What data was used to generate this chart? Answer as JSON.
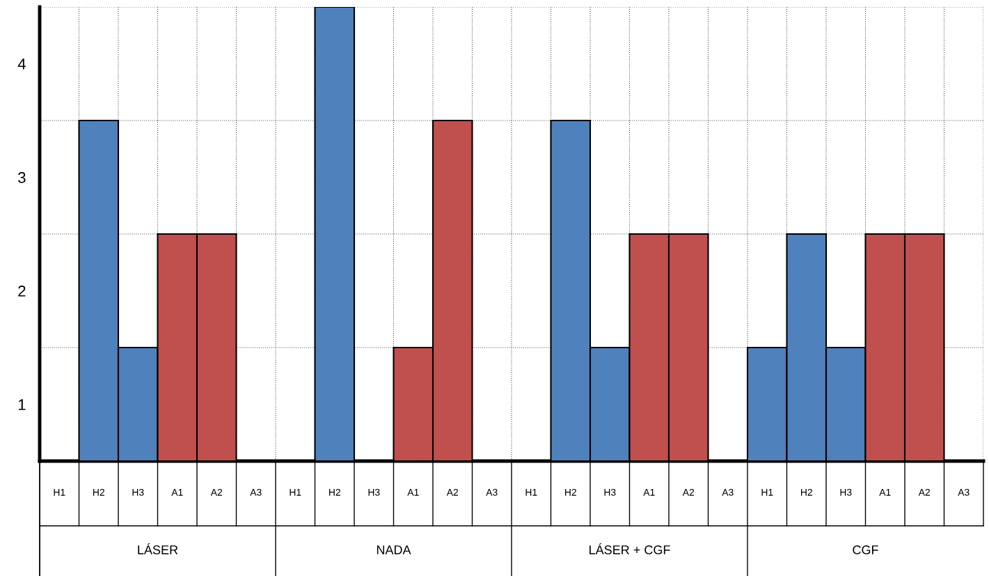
{
  "chart_data": {
    "type": "bar",
    "categories": [
      "H1",
      "H2",
      "H3",
      "A1",
      "A2",
      "A3",
      "H1",
      "H2",
      "H3",
      "A1",
      "A2",
      "A3",
      "H1",
      "H2",
      "H3",
      "A1",
      "A2",
      "A3",
      "H1",
      "H2",
      "H3",
      "A1",
      "A2",
      "A3"
    ],
    "values": [
      0,
      3,
      1,
      2,
      2,
      0,
      0,
      4,
      0,
      1,
      3,
      0,
      0,
      3,
      1,
      2,
      2,
      0,
      1,
      2,
      1,
      2,
      2,
      0
    ],
    "colors": [
      "#4f81bd",
      "#4f81bd",
      "#4f81bd",
      "#c0504d",
      "#c0504d",
      "#c0504d",
      "#4f81bd",
      "#4f81bd",
      "#4f81bd",
      "#c0504d",
      "#c0504d",
      "#c0504d",
      "#4f81bd",
      "#4f81bd",
      "#4f81bd",
      "#c0504d",
      "#c0504d",
      "#c0504d",
      "#4f81bd",
      "#4f81bd",
      "#4f81bd",
      "#c0504d",
      "#c0504d",
      "#c0504d"
    ],
    "annotations": [
      "LÁSER",
      "NADA",
      "LÁSER + CGF",
      "CGF"
    ],
    "ylim": [
      0,
      4
    ],
    "yticks": [
      {
        "value": 0.5,
        "label": "1"
      },
      {
        "value": 1,
        "label": null
      },
      {
        "value": 1.5,
        "label": "2"
      },
      {
        "value": 2,
        "label": null
      },
      {
        "value": 2.5,
        "label": "3"
      },
      {
        "value": 3,
        "label": null
      },
      {
        "value": 3.5,
        "label": "4"
      }
    ],
    "grid": true
  }
}
